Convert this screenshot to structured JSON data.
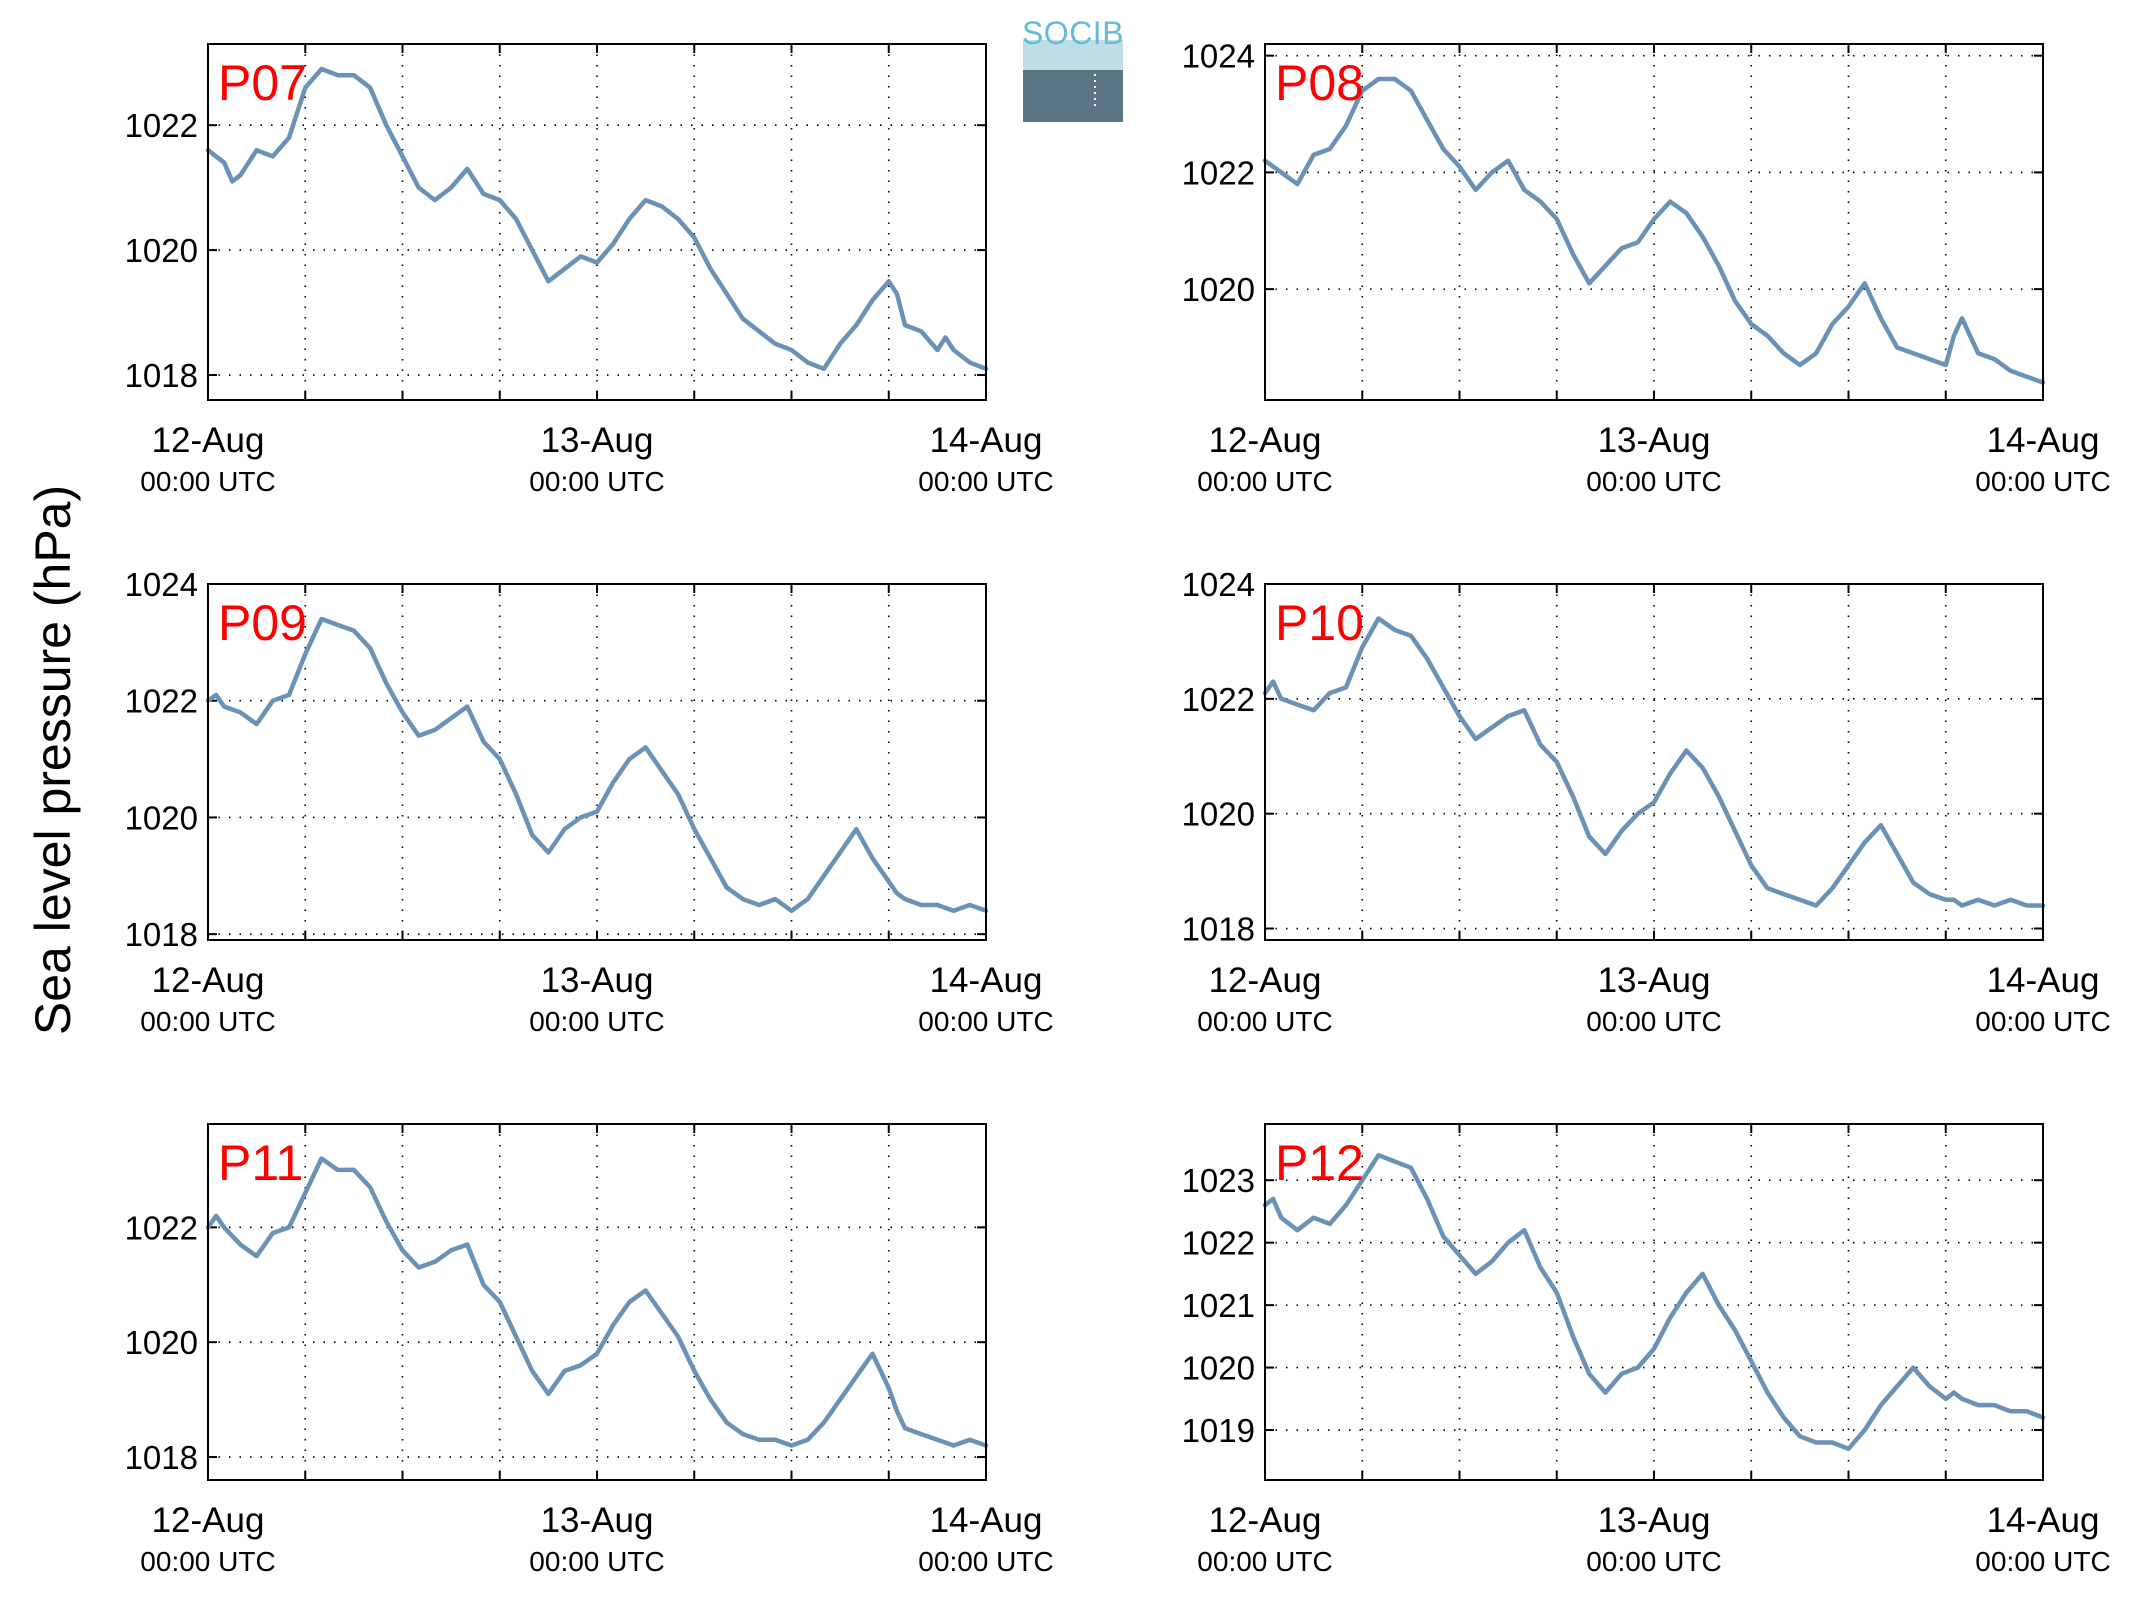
{
  "y_axis_title": "Sea level pressure (hPa)",
  "logo": {
    "text": "SOCIB"
  },
  "colors": {
    "line": "#6a92b6",
    "panel_label": "#ff0000",
    "logo_text": "#62bcd3",
    "logo_dark": "#2c3c48"
  },
  "chart_data": [
    {
      "type": "line",
      "title": "P07",
      "x_ticks": [
        {
          "x": 0,
          "date": "12-Aug",
          "time": "00:00 UTC"
        },
        {
          "x": 24,
          "date": "13-Aug",
          "time": "00:00 UTC"
        },
        {
          "x": 48,
          "date": "14-Aug",
          "time": "00:00 UTC"
        }
      ],
      "xlim": [
        0,
        48
      ],
      "ylim": [
        1017.6,
        1023.3
      ],
      "yticks": [
        1018,
        1020,
        1022
      ],
      "grid": true,
      "series": [
        {
          "x_hours": [
            0,
            1,
            1.5,
            2,
            3,
            4,
            5,
            6,
            7,
            8,
            9,
            10,
            11,
            12,
            13,
            14,
            15,
            16,
            17,
            18,
            19,
            20,
            21,
            22,
            23,
            24,
            25,
            26,
            27,
            28,
            29,
            30,
            31,
            32,
            33,
            34,
            35,
            36,
            37,
            38,
            39,
            40,
            41,
            42,
            42.5,
            43,
            44,
            45,
            45.5,
            46,
            47,
            48
          ],
          "hPa": [
            1021.6,
            1021.4,
            1021.1,
            1021.2,
            1021.6,
            1021.5,
            1021.8,
            1022.6,
            1022.9,
            1022.8,
            1022.8,
            1022.6,
            1022.0,
            1021.5,
            1021.0,
            1020.8,
            1021.0,
            1021.3,
            1020.9,
            1020.8,
            1020.5,
            1020.0,
            1019.5,
            1019.7,
            1019.9,
            1019.8,
            1020.1,
            1020.5,
            1020.8,
            1020.7,
            1020.5,
            1020.2,
            1019.7,
            1019.3,
            1018.9,
            1018.7,
            1018.5,
            1018.4,
            1018.2,
            1018.1,
            1018.5,
            1018.8,
            1019.2,
            1019.5,
            1019.3,
            1018.8,
            1018.7,
            1018.4,
            1018.6,
            1018.4,
            1018.2,
            1018.1
          ]
        }
      ]
    },
    {
      "type": "line",
      "title": "P08",
      "x_ticks": [
        {
          "x": 0,
          "date": "12-Aug",
          "time": "00:00 UTC"
        },
        {
          "x": 24,
          "date": "13-Aug",
          "time": "00:00 UTC"
        },
        {
          "x": 48,
          "date": "14-Aug",
          "time": "00:00 UTC"
        }
      ],
      "xlim": [
        0,
        48
      ],
      "ylim": [
        1018.1,
        1024.2
      ],
      "yticks": [
        1020,
        1022,
        1024
      ],
      "grid": true,
      "series": [
        {
          "x_hours": [
            0,
            1,
            2,
            3,
            4,
            5,
            6,
            7,
            8,
            9,
            10,
            11,
            12,
            13,
            14,
            15,
            16,
            17,
            18,
            19,
            20,
            21,
            22,
            23,
            24,
            25,
            26,
            27,
            28,
            29,
            30,
            31,
            32,
            33,
            34,
            35,
            36,
            37,
            38,
            39,
            40,
            41,
            42,
            42.5,
            43,
            44,
            45,
            46,
            47,
            48
          ],
          "hPa": [
            1022.2,
            1022.0,
            1021.8,
            1022.3,
            1022.4,
            1022.8,
            1023.4,
            1023.6,
            1023.6,
            1023.4,
            1022.9,
            1022.4,
            1022.1,
            1021.7,
            1022.0,
            1022.2,
            1021.7,
            1021.5,
            1021.2,
            1020.6,
            1020.1,
            1020.4,
            1020.7,
            1020.8,
            1021.2,
            1021.5,
            1021.3,
            1020.9,
            1020.4,
            1019.8,
            1019.4,
            1019.2,
            1018.9,
            1018.7,
            1018.9,
            1019.4,
            1019.7,
            1020.1,
            1019.5,
            1019.0,
            1018.9,
            1018.8,
            1018.7,
            1019.2,
            1019.5,
            1018.9,
            1018.8,
            1018.6,
            1018.5,
            1018.4
          ]
        }
      ]
    },
    {
      "type": "line",
      "title": "P09",
      "x_ticks": [
        {
          "x": 0,
          "date": "12-Aug",
          "time": "00:00 UTC"
        },
        {
          "x": 24,
          "date": "13-Aug",
          "time": "00:00 UTC"
        },
        {
          "x": 48,
          "date": "14-Aug",
          "time": "00:00 UTC"
        }
      ],
      "xlim": [
        0,
        48
      ],
      "ylim": [
        1017.9,
        1024.0
      ],
      "yticks": [
        1018,
        1020,
        1022,
        1024
      ],
      "grid": true,
      "series": [
        {
          "x_hours": [
            0,
            0.5,
            1,
            2,
            3,
            4,
            5,
            6,
            7,
            8,
            9,
            10,
            11,
            12,
            13,
            14,
            15,
            16,
            17,
            18,
            19,
            20,
            21,
            22,
            23,
            24,
            25,
            26,
            27,
            28,
            29,
            30,
            31,
            32,
            33,
            34,
            35,
            36,
            37,
            38,
            39,
            40,
            41,
            42,
            42.5,
            43,
            44,
            45,
            46,
            47,
            48
          ],
          "hPa": [
            1022.0,
            1022.1,
            1021.9,
            1021.8,
            1021.6,
            1022.0,
            1022.1,
            1022.8,
            1023.4,
            1023.3,
            1023.2,
            1022.9,
            1022.3,
            1021.8,
            1021.4,
            1021.5,
            1021.7,
            1021.9,
            1021.3,
            1021.0,
            1020.4,
            1019.7,
            1019.4,
            1019.8,
            1020.0,
            1020.1,
            1020.6,
            1021.0,
            1021.2,
            1020.8,
            1020.4,
            1019.8,
            1019.3,
            1018.8,
            1018.6,
            1018.5,
            1018.6,
            1018.4,
            1018.6,
            1019.0,
            1019.4,
            1019.8,
            1019.3,
            1018.9,
            1018.7,
            1018.6,
            1018.5,
            1018.5,
            1018.4,
            1018.5,
            1018.4
          ]
        }
      ]
    },
    {
      "type": "line",
      "title": "P10",
      "x_ticks": [
        {
          "x": 0,
          "date": "12-Aug",
          "time": "00:00 UTC"
        },
        {
          "x": 24,
          "date": "13-Aug",
          "time": "00:00 UTC"
        },
        {
          "x": 48,
          "date": "14-Aug",
          "time": "00:00 UTC"
        }
      ],
      "xlim": [
        0,
        48
      ],
      "ylim": [
        1017.8,
        1024.0
      ],
      "yticks": [
        1018,
        1020,
        1022,
        1024
      ],
      "grid": true,
      "series": [
        {
          "x_hours": [
            0,
            0.5,
            1,
            2,
            3,
            4,
            5,
            6,
            7,
            8,
            9,
            10,
            11,
            12,
            13,
            14,
            15,
            16,
            17,
            18,
            19,
            20,
            21,
            22,
            23,
            24,
            25,
            26,
            27,
            28,
            29,
            30,
            31,
            32,
            33,
            34,
            35,
            36,
            37,
            38,
            39,
            40,
            41,
            42,
            42.5,
            43,
            44,
            45,
            46,
            47,
            48
          ],
          "hPa": [
            1022.1,
            1022.3,
            1022.0,
            1021.9,
            1021.8,
            1022.1,
            1022.2,
            1022.9,
            1023.4,
            1023.2,
            1023.1,
            1022.7,
            1022.2,
            1021.7,
            1021.3,
            1021.5,
            1021.7,
            1021.8,
            1021.2,
            1020.9,
            1020.3,
            1019.6,
            1019.3,
            1019.7,
            1020.0,
            1020.2,
            1020.7,
            1021.1,
            1020.8,
            1020.3,
            1019.7,
            1019.1,
            1018.7,
            1018.6,
            1018.5,
            1018.4,
            1018.7,
            1019.1,
            1019.5,
            1019.8,
            1019.3,
            1018.8,
            1018.6,
            1018.5,
            1018.5,
            1018.4,
            1018.5,
            1018.4,
            1018.5,
            1018.4,
            1018.4
          ]
        }
      ]
    },
    {
      "type": "line",
      "title": "P11",
      "x_ticks": [
        {
          "x": 0,
          "date": "12-Aug",
          "time": "00:00 UTC"
        },
        {
          "x": 24,
          "date": "13-Aug",
          "time": "00:00 UTC"
        },
        {
          "x": 48,
          "date": "14-Aug",
          "time": "00:00 UTC"
        }
      ],
      "xlim": [
        0,
        48
      ],
      "ylim": [
        1017.6,
        1023.8
      ],
      "yticks": [
        1018,
        1020,
        1022
      ],
      "grid": true,
      "series": [
        {
          "x_hours": [
            0,
            0.5,
            1,
            2,
            3,
            4,
            5,
            6,
            7,
            8,
            9,
            10,
            11,
            12,
            13,
            14,
            15,
            16,
            17,
            18,
            19,
            20,
            21,
            22,
            23,
            24,
            25,
            26,
            27,
            28,
            29,
            30,
            31,
            32,
            33,
            34,
            35,
            36,
            37,
            38,
            39,
            40,
            41,
            42,
            42.5,
            43,
            44,
            45,
            46,
            47,
            48
          ],
          "hPa": [
            1022.0,
            1022.2,
            1022.0,
            1021.7,
            1021.5,
            1021.9,
            1022.0,
            1022.6,
            1023.2,
            1023.0,
            1023.0,
            1022.7,
            1022.1,
            1021.6,
            1021.3,
            1021.4,
            1021.6,
            1021.7,
            1021.0,
            1020.7,
            1020.1,
            1019.5,
            1019.1,
            1019.5,
            1019.6,
            1019.8,
            1020.3,
            1020.7,
            1020.9,
            1020.5,
            1020.1,
            1019.5,
            1019.0,
            1018.6,
            1018.4,
            1018.3,
            1018.3,
            1018.2,
            1018.3,
            1018.6,
            1019.0,
            1019.4,
            1019.8,
            1019.2,
            1018.8,
            1018.5,
            1018.4,
            1018.3,
            1018.2,
            1018.3,
            1018.2
          ]
        }
      ]
    },
    {
      "type": "line",
      "title": "P12",
      "x_ticks": [
        {
          "x": 0,
          "date": "12-Aug",
          "time": "00:00 UTC"
        },
        {
          "x": 24,
          "date": "13-Aug",
          "time": "00:00 UTC"
        },
        {
          "x": 48,
          "date": "14-Aug",
          "time": "00:00 UTC"
        }
      ],
      "xlim": [
        0,
        48
      ],
      "ylim": [
        1018.2,
        1023.9
      ],
      "yticks": [
        1019,
        1020,
        1021,
        1022,
        1023
      ],
      "grid": true,
      "series": [
        {
          "x_hours": [
            0,
            0.5,
            1,
            2,
            3,
            4,
            5,
            6,
            7,
            8,
            9,
            10,
            11,
            12,
            13,
            14,
            15,
            16,
            17,
            18,
            19,
            20,
            21,
            22,
            23,
            24,
            25,
            26,
            27,
            28,
            29,
            30,
            31,
            32,
            33,
            34,
            35,
            36,
            37,
            38,
            39,
            40,
            41,
            42,
            42.5,
            43,
            44,
            45,
            46,
            47,
            48
          ],
          "hPa": [
            1022.6,
            1022.7,
            1022.4,
            1022.2,
            1022.4,
            1022.3,
            1022.6,
            1023.0,
            1023.4,
            1023.3,
            1023.2,
            1022.7,
            1022.1,
            1021.8,
            1021.5,
            1021.7,
            1022.0,
            1022.2,
            1021.6,
            1021.2,
            1020.5,
            1019.9,
            1019.6,
            1019.9,
            1020.0,
            1020.3,
            1020.8,
            1021.2,
            1021.5,
            1021.0,
            1020.6,
            1020.1,
            1019.6,
            1019.2,
            1018.9,
            1018.8,
            1018.8,
            1018.7,
            1019.0,
            1019.4,
            1019.7,
            1020.0,
            1019.7,
            1019.5,
            1019.6,
            1019.5,
            1019.4,
            1019.4,
            1019.3,
            1019.3,
            1019.2
          ]
        }
      ]
    }
  ]
}
